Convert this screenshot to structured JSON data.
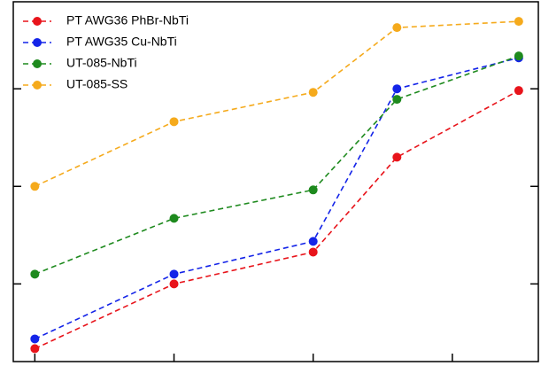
{
  "chart_data": {
    "type": "line",
    "xscale": "log",
    "yscale": "log",
    "x": [
      1,
      10,
      100,
      400,
      3000
    ],
    "series": [
      {
        "name": "PT AWG36 PhBr-NbTi",
        "color": "#e8141b",
        "values": [
          0.217,
          1.0,
          2.12,
          19.9,
          96
        ]
      },
      {
        "name": "PT AWG35 Cu-NbTi",
        "color": "#1424e8",
        "values": [
          0.273,
          1.26,
          2.73,
          100,
          208
        ]
      },
      {
        "name": "UT-085-NbTi",
        "color": "#1e8a1e",
        "values": [
          1.26,
          4.7,
          9.2,
          78,
          217
        ]
      },
      {
        "name": "UT-085-SS",
        "color": "#f5aa1c",
        "values": [
          10,
          46,
          92,
          424,
          491
        ]
      }
    ],
    "xlim": [
      0.7,
      4150
    ],
    "ylim": [
      0.16,
      780
    ],
    "xticks": [
      1,
      10,
      100,
      1000
    ],
    "yticks": [
      1,
      10,
      100
    ],
    "legend": "upper left"
  }
}
